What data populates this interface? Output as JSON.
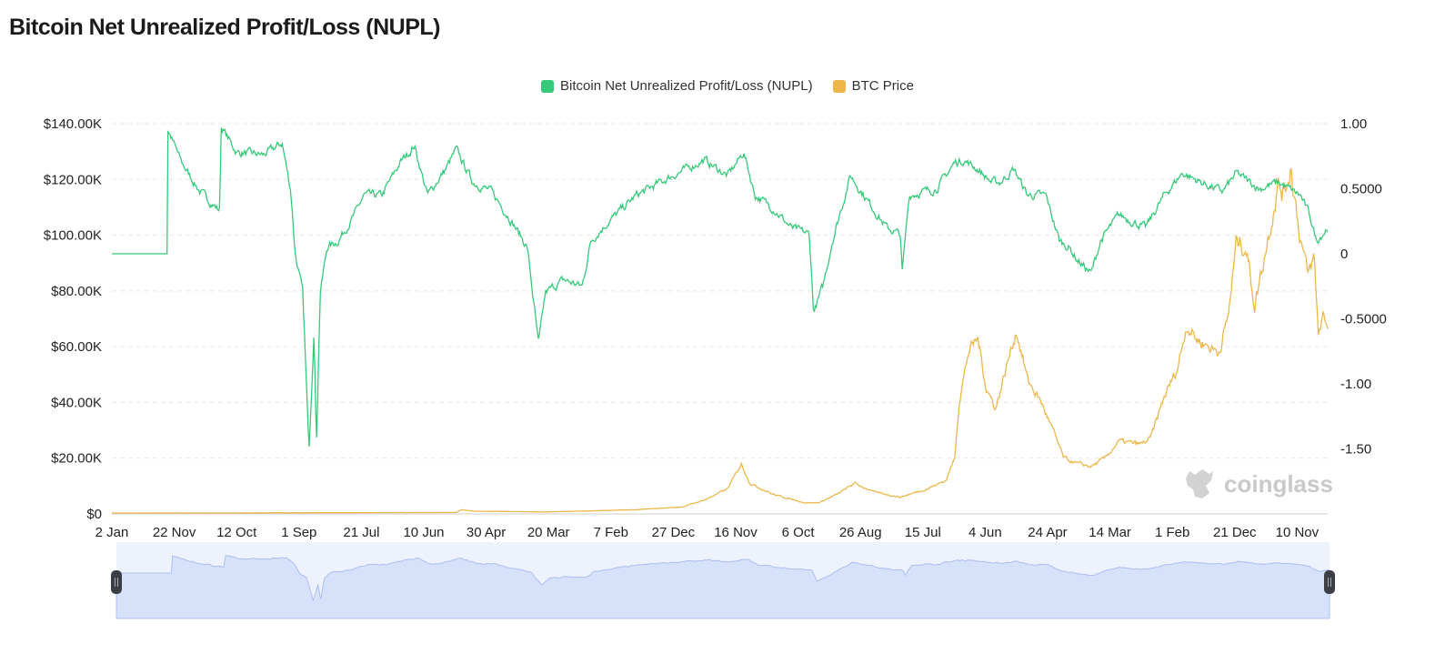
{
  "title": "Bitcoin Net Unrealized Profit/Loss (NUPL)",
  "watermark": "coinglass",
  "chart_data": {
    "type": "line",
    "title": "Bitcoin Net Unrealized Profit/Loss (NUPL)",
    "legend_position": "top",
    "grid": true,
    "x_categories": [
      "2 Jan",
      "22 Nov",
      "12 Oct",
      "1 Sep",
      "21 Jul",
      "10 Jun",
      "30 Apr",
      "20 Mar",
      "7 Feb",
      "27 Dec",
      "16 Nov",
      "6 Oct",
      "26 Aug",
      "15 Jul",
      "4 Jun",
      "24 Apr",
      "14 Mar",
      "1 Feb",
      "21 Dec",
      "10 Nov"
    ],
    "xlim": [
      0,
      19.49
    ],
    "y_left": {
      "ticks": [
        "$0",
        "$20.00K",
        "$40.00K",
        "$60.00K",
        "$80.00K",
        "$100.00K",
        "$120.00K",
        "$140.00K"
      ],
      "range_k": [
        0,
        140
      ]
    },
    "y_right": {
      "ticks": [
        "-1.50",
        "-1.00",
        "-0.5000",
        "0",
        "0.5000",
        "1.00"
      ],
      "range": [
        -2,
        1
      ]
    },
    "series": [
      {
        "name": "Bitcoin Net Unrealized Profit/Loss (NUPL)",
        "axis": "right",
        "color": "#35c97a",
        "points": [
          [
            0,
            0
          ],
          [
            0.85,
            0
          ],
          [
            0.86,
            1.0
          ],
          [
            1.12,
            0.7
          ],
          [
            1.41,
            0.48
          ],
          [
            1.73,
            0.33
          ],
          [
            1.75,
            0.98
          ],
          [
            2.0,
            0.78
          ],
          [
            2.43,
            0.76
          ],
          [
            2.73,
            0.85
          ],
          [
            2.87,
            0.48
          ],
          [
            2.94,
            0.0
          ],
          [
            3.06,
            -0.3
          ],
          [
            3.16,
            -1.5
          ],
          [
            3.24,
            -0.6
          ],
          [
            3.28,
            -1.45
          ],
          [
            3.34,
            -0.3
          ],
          [
            3.45,
            0.05
          ],
          [
            3.63,
            0.1
          ],
          [
            3.89,
            0.3
          ],
          [
            4.04,
            0.45
          ],
          [
            4.33,
            0.45
          ],
          [
            4.62,
            0.7
          ],
          [
            4.85,
            0.83
          ],
          [
            5.06,
            0.45
          ],
          [
            5.35,
            0.65
          ],
          [
            5.52,
            0.8
          ],
          [
            5.79,
            0.55
          ],
          [
            6.08,
            0.48
          ],
          [
            6.37,
            0.28
          ],
          [
            6.66,
            0.05
          ],
          [
            6.84,
            -0.7
          ],
          [
            6.95,
            -0.3
          ],
          [
            7.24,
            -0.2
          ],
          [
            7.54,
            -0.25
          ],
          [
            7.68,
            0.1
          ],
          [
            7.97,
            0.25
          ],
          [
            8.41,
            0.45
          ],
          [
            8.99,
            0.6
          ],
          [
            9.5,
            0.72
          ],
          [
            9.87,
            0.6
          ],
          [
            10.13,
            0.78
          ],
          [
            10.31,
            0.45
          ],
          [
            10.6,
            0.35
          ],
          [
            10.89,
            0.2
          ],
          [
            11.18,
            0.15
          ],
          [
            11.25,
            -0.45
          ],
          [
            11.4,
            -0.25
          ],
          [
            11.55,
            0.1
          ],
          [
            11.84,
            0.6
          ],
          [
            12.2,
            0.35
          ],
          [
            12.42,
            0.2
          ],
          [
            12.64,
            0.15
          ],
          [
            12.67,
            -0.15
          ],
          [
            12.78,
            0.45
          ],
          [
            13.22,
            0.5
          ],
          [
            13.51,
            0.7
          ],
          [
            13.66,
            0.72
          ],
          [
            13.88,
            0.65
          ],
          [
            14.1,
            0.55
          ],
          [
            14.24,
            0.55
          ],
          [
            14.46,
            0.65
          ],
          [
            14.68,
            0.45
          ],
          [
            14.97,
            0.45
          ],
          [
            15.19,
            0.1
          ],
          [
            15.34,
            0.05
          ],
          [
            15.48,
            -0.05
          ],
          [
            15.7,
            -0.15
          ],
          [
            15.85,
            0.1
          ],
          [
            16.14,
            0.3
          ],
          [
            16.57,
            0.2
          ],
          [
            16.87,
            0.45
          ],
          [
            17.16,
            0.62
          ],
          [
            17.59,
            0.52
          ],
          [
            17.81,
            0.48
          ],
          [
            18.03,
            0.62
          ],
          [
            18.4,
            0.5
          ],
          [
            18.69,
            0.55
          ],
          [
            19.05,
            0.45
          ],
          [
            19.2,
            0.3
          ],
          [
            19.31,
            0.1
          ],
          [
            19.49,
            0.2
          ]
        ]
      },
      {
        "name": "BTC Price",
        "axis": "left",
        "unit": "$K",
        "color": "#ebb74a",
        "points": [
          [
            0,
            0.3
          ],
          [
            5.52,
            0.5
          ],
          [
            5.6,
            1.5
          ],
          [
            5.79,
            1.0
          ],
          [
            6.95,
            0.7
          ],
          [
            8.41,
            1.5
          ],
          [
            9.14,
            2.5
          ],
          [
            9.5,
            5
          ],
          [
            9.87,
            9
          ],
          [
            10.09,
            18
          ],
          [
            10.23,
            11
          ],
          [
            10.6,
            7
          ],
          [
            11.11,
            4
          ],
          [
            11.33,
            4
          ],
          [
            11.62,
            7
          ],
          [
            11.91,
            11
          ],
          [
            12.2,
            8
          ],
          [
            12.64,
            6
          ],
          [
            13.07,
            9
          ],
          [
            13.37,
            12
          ],
          [
            13.51,
            20
          ],
          [
            13.58,
            40
          ],
          [
            13.73,
            58
          ],
          [
            13.88,
            63
          ],
          [
            14.02,
            45
          ],
          [
            14.17,
            38
          ],
          [
            14.39,
            57
          ],
          [
            14.5,
            66
          ],
          [
            14.68,
            48
          ],
          [
            14.9,
            40
          ],
          [
            15.12,
            28
          ],
          [
            15.26,
            20
          ],
          [
            15.48,
            18
          ],
          [
            15.7,
            17
          ],
          [
            15.92,
            20
          ],
          [
            16.14,
            26
          ],
          [
            16.5,
            25
          ],
          [
            16.65,
            27
          ],
          [
            16.87,
            42
          ],
          [
            17.08,
            52
          ],
          [
            17.23,
            68
          ],
          [
            17.38,
            63
          ],
          [
            17.52,
            61
          ],
          [
            17.74,
            58
          ],
          [
            17.89,
            70
          ],
          [
            18.03,
            98
          ],
          [
            18.18,
            96
          ],
          [
            18.32,
            75
          ],
          [
            18.47,
            92
          ],
          [
            18.69,
            118
          ],
          [
            18.79,
            115
          ],
          [
            18.9,
            125
          ],
          [
            19.02,
            104
          ],
          [
            19.17,
            85
          ],
          [
            19.27,
            92
          ],
          [
            19.34,
            65
          ],
          [
            19.43,
            72
          ],
          [
            19.49,
            67
          ]
        ]
      }
    ]
  },
  "data_zoom": {
    "start_percent": 0,
    "end_percent": 100
  }
}
